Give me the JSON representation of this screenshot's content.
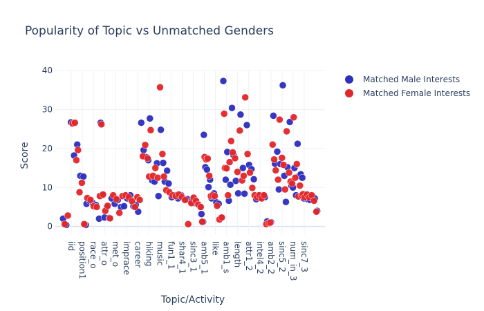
{
  "chart_data": {
    "type": "scatter",
    "title": "Popularity of Topic vs Unmatched Genders",
    "xlabel": "Topic/Activity",
    "ylabel": "Score",
    "ylim": [
      -2,
      40
    ],
    "yticks": [
      0,
      10,
      20,
      30,
      40
    ],
    "x_tick_labels": [
      "iid",
      "position1",
      "race_o",
      "attr_o",
      "met_o",
      "imprace",
      "career",
      "hiking",
      "music",
      "fun1_1",
      "shar4_1",
      "sinc3_1",
      "amb5_1",
      "like",
      "amb1_s",
      "length",
      "attr1_2",
      "intel4_2",
      "amb2_2",
      "sinc5_2",
      "num_in_3",
      "sinc7_3"
    ],
    "grid": true,
    "legend_position": "right",
    "series": [
      {
        "name": "Matched Male Interests",
        "color": "#2f2fbf",
        "points": [
          [
            1.0,
            2.0
          ],
          [
            1.4,
            0.4
          ],
          [
            2.0,
            26.7
          ],
          [
            2.4,
            18.2
          ],
          [
            2.8,
            21.0
          ],
          [
            3.2,
            13.0
          ],
          [
            3.6,
            12.8
          ],
          [
            3.9,
            0.4
          ],
          [
            4.0,
            5.8
          ],
          [
            4.4,
            6.5
          ],
          [
            4.8,
            6.0
          ],
          [
            5.2,
            5.5
          ],
          [
            5.6,
            2.0
          ],
          [
            5.8,
            26.6
          ],
          [
            6.0,
            8.0
          ],
          [
            6.3,
            2.3
          ],
          [
            6.6,
            5.0
          ],
          [
            6.9,
            2.2
          ],
          [
            7.2,
            7.2
          ],
          [
            7.6,
            5.8
          ],
          [
            8.0,
            6.8
          ],
          [
            8.4,
            5.0
          ],
          [
            8.8,
            5.2
          ],
          [
            9.2,
            7.2
          ],
          [
            9.6,
            8.0
          ],
          [
            10.0,
            5.2
          ],
          [
            10.3,
            5.5
          ],
          [
            10.6,
            3.8
          ],
          [
            11.0,
            26.6
          ],
          [
            11.3,
            19.6
          ],
          [
            11.6,
            17.8
          ],
          [
            11.9,
            17.0
          ],
          [
            12.1,
            27.7
          ],
          [
            12.4,
            11.8
          ],
          [
            12.7,
            11.5
          ],
          [
            13.0,
            16.2
          ],
          [
            13.2,
            7.8
          ],
          [
            13.5,
            24.8
          ],
          [
            13.8,
            16.3
          ],
          [
            14.0,
            11.5
          ],
          [
            14.3,
            14.3
          ],
          [
            14.5,
            11.0
          ],
          [
            14.9,
            7.5
          ],
          [
            15.3,
            8.0
          ],
          [
            15.7,
            7.2
          ],
          [
            16.1,
            8.0
          ],
          [
            16.5,
            7.0
          ],
          [
            16.9,
            7.0
          ],
          [
            17.3,
            6.5
          ],
          [
            17.6,
            7.0
          ],
          [
            17.9,
            6.0
          ],
          [
            18.2,
            5.8
          ],
          [
            18.5,
            5.2
          ],
          [
            18.7,
            3.2
          ],
          [
            18.9,
            1.2
          ],
          [
            19.0,
            23.5
          ],
          [
            19.2,
            15.2
          ],
          [
            19.4,
            14.6
          ],
          [
            19.6,
            10.1
          ],
          [
            19.8,
            12.0
          ],
          [
            20.0,
            7.2
          ],
          [
            20.3,
            8.5
          ],
          [
            20.6,
            6.2
          ],
          [
            20.9,
            5.8
          ],
          [
            21.2,
            2.2
          ],
          [
            21.5,
            37.3
          ],
          [
            21.8,
            12.0
          ],
          [
            22.0,
            19.1
          ],
          [
            22.2,
            6.6
          ],
          [
            22.4,
            10.7
          ],
          [
            22.6,
            30.4
          ],
          [
            22.8,
            18.3
          ],
          [
            23.1,
            11.7
          ],
          [
            23.4,
            8.5
          ],
          [
            23.7,
            28.7
          ],
          [
            24.0,
            15.0
          ],
          [
            24.2,
            8.4
          ],
          [
            24.5,
            26.0
          ],
          [
            24.8,
            15.8
          ],
          [
            25.1,
            14.7
          ],
          [
            25.4,
            12.1
          ],
          [
            25.7,
            7.0
          ],
          [
            26.0,
            8.0
          ],
          [
            26.3,
            7.5
          ],
          [
            26.6,
            8.0
          ],
          [
            26.8,
            7.5
          ],
          [
            27.1,
            1.3
          ],
          [
            27.4,
            0.8
          ],
          [
            27.6,
            1.1
          ],
          [
            27.9,
            28.4
          ],
          [
            28.1,
            16.1
          ],
          [
            28.4,
            19.2
          ],
          [
            28.6,
            9.5
          ],
          [
            28.8,
            16.0
          ],
          [
            29.1,
            36.2
          ],
          [
            29.3,
            13.0
          ],
          [
            29.5,
            6.3
          ],
          [
            29.7,
            15.2
          ],
          [
            30.0,
            26.8
          ],
          [
            30.2,
            10.5
          ],
          [
            30.4,
            10.0
          ],
          [
            30.6,
            15.0
          ],
          [
            30.8,
            8.0
          ],
          [
            31.0,
            21.2
          ],
          [
            31.2,
            13.0
          ],
          [
            31.4,
            13.4
          ],
          [
            31.6,
            12.5
          ],
          [
            31.8,
            7.2
          ],
          [
            32.0,
            8.0
          ],
          [
            32.3,
            7.0
          ],
          [
            32.6,
            6.8
          ],
          [
            32.9,
            7.8
          ],
          [
            33.2,
            7.2
          ],
          [
            33.5,
            4.0
          ]
        ]
      },
      {
        "name": "Matched Female Interests",
        "color": "#e3262b",
        "points": [
          [
            1.2,
            0.6
          ],
          [
            1.6,
            2.8
          ],
          [
            2.2,
            26.4
          ],
          [
            2.5,
            26.6
          ],
          [
            2.7,
            17.0
          ],
          [
            2.9,
            19.6
          ],
          [
            3.1,
            8.8
          ],
          [
            3.4,
            11.2
          ],
          [
            3.7,
            0.6
          ],
          [
            4.1,
            7.3
          ],
          [
            4.5,
            6.8
          ],
          [
            4.9,
            5.2
          ],
          [
            5.3,
            5.0
          ],
          [
            5.7,
            7.8
          ],
          [
            5.9,
            26.2
          ],
          [
            6.1,
            8.2
          ],
          [
            6.4,
            4.0
          ],
          [
            6.7,
            5.3
          ],
          [
            7.0,
            2.1
          ],
          [
            7.4,
            8.0
          ],
          [
            7.8,
            7.0
          ],
          [
            8.2,
            3.5
          ],
          [
            8.6,
            7.8
          ],
          [
            9.0,
            8.0
          ],
          [
            9.4,
            7.5
          ],
          [
            9.8,
            6.5
          ],
          [
            10.2,
            5.0
          ],
          [
            10.5,
            7.5
          ],
          [
            10.8,
            6.8
          ],
          [
            11.2,
            18.0
          ],
          [
            11.5,
            20.9
          ],
          [
            11.8,
            17.5
          ],
          [
            12.0,
            12.8
          ],
          [
            12.2,
            24.7
          ],
          [
            12.5,
            13.0
          ],
          [
            12.8,
            15.0
          ],
          [
            13.1,
            12.5
          ],
          [
            13.4,
            35.7
          ],
          [
            13.7,
            18.6
          ],
          [
            13.9,
            12.8
          ],
          [
            14.2,
            9.3
          ],
          [
            14.6,
            8.8
          ],
          [
            15.0,
            8.0
          ],
          [
            15.4,
            7.8
          ],
          [
            15.8,
            8.2
          ],
          [
            16.2,
            7.5
          ],
          [
            16.6,
            6.8
          ],
          [
            17.0,
            0.6
          ],
          [
            17.4,
            6.0
          ],
          [
            17.7,
            7.4
          ],
          [
            18.0,
            6.6
          ],
          [
            18.3,
            5.6
          ],
          [
            18.6,
            5.0
          ],
          [
            18.8,
            1.2
          ],
          [
            19.1,
            17.8
          ],
          [
            19.3,
            17.2
          ],
          [
            19.5,
            17.4
          ],
          [
            19.7,
            13.0
          ],
          [
            19.9,
            7.8
          ],
          [
            20.1,
            8.0
          ],
          [
            20.4,
            7.8
          ],
          [
            20.7,
            5.3
          ],
          [
            21.0,
            1.8
          ],
          [
            21.3,
            2.3
          ],
          [
            21.6,
            28.9
          ],
          [
            21.7,
            15.0
          ],
          [
            21.9,
            14.9
          ],
          [
            22.1,
            8.0
          ],
          [
            22.3,
            16.5
          ],
          [
            22.5,
            21.9
          ],
          [
            22.7,
            19.0
          ],
          [
            23.0,
            17.5
          ],
          [
            23.3,
            14.0
          ],
          [
            23.6,
            24.6
          ],
          [
            23.9,
            11.8
          ],
          [
            24.1,
            13.0
          ],
          [
            24.3,
            33.1
          ],
          [
            24.6,
            18.6
          ],
          [
            24.9,
            13.8
          ],
          [
            25.2,
            9.9
          ],
          [
            25.5,
            8.0
          ],
          [
            25.8,
            7.5
          ],
          [
            26.1,
            8.0
          ],
          [
            26.4,
            7.2
          ],
          [
            26.7,
            8.0
          ],
          [
            27.0,
            0.6
          ],
          [
            27.3,
            0.9
          ],
          [
            27.5,
            1.0
          ],
          [
            27.8,
            21.0
          ],
          [
            28.0,
            17.2
          ],
          [
            28.2,
            14.4
          ],
          [
            28.5,
            12.0
          ],
          [
            28.7,
            27.4
          ],
          [
            29.0,
            17.6
          ],
          [
            29.2,
            15.8
          ],
          [
            29.4,
            9.5
          ],
          [
            29.6,
            24.4
          ],
          [
            29.9,
            13.8
          ],
          [
            30.1,
            11.5
          ],
          [
            30.3,
            11.0
          ],
          [
            30.5,
            28.0
          ],
          [
            30.7,
            12.5
          ],
          [
            30.9,
            16.0
          ],
          [
            31.1,
            7.7
          ],
          [
            31.3,
            10.5
          ],
          [
            31.5,
            8.0
          ],
          [
            31.7,
            8.3
          ],
          [
            31.9,
            7.5
          ],
          [
            32.2,
            8.2
          ],
          [
            32.5,
            7.5
          ],
          [
            32.8,
            8.0
          ],
          [
            33.1,
            6.6
          ],
          [
            33.4,
            3.8
          ]
        ]
      }
    ]
  }
}
